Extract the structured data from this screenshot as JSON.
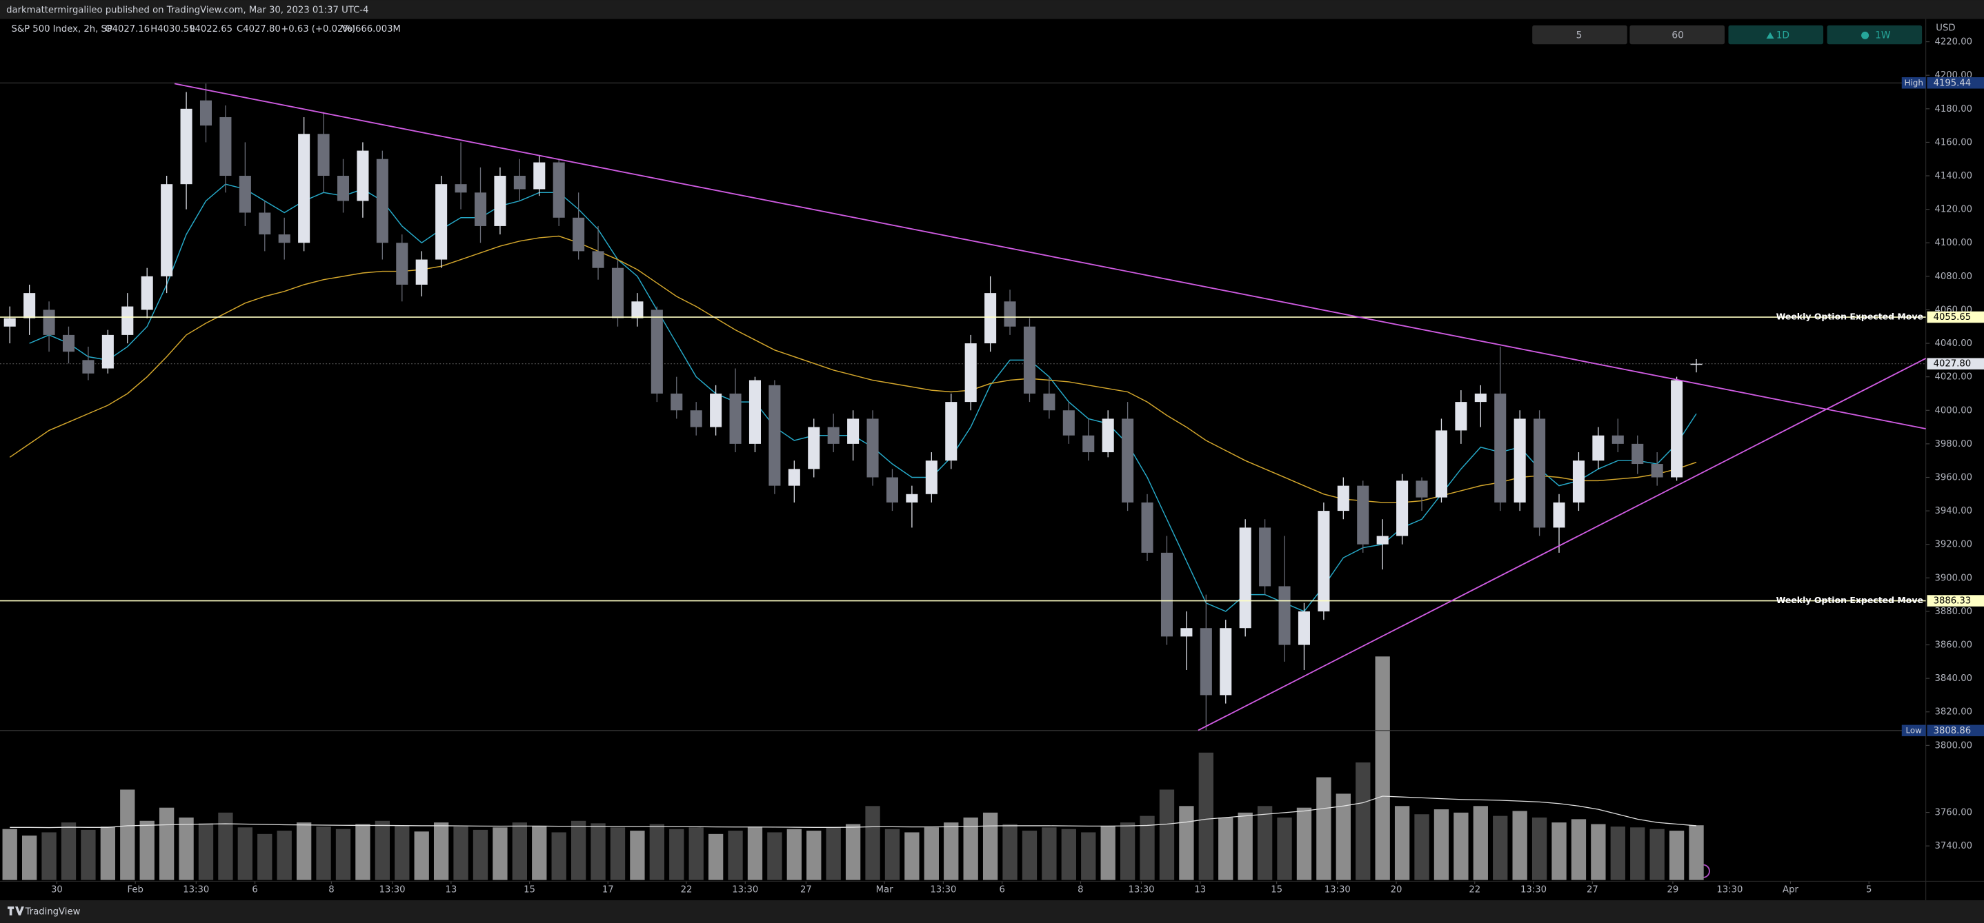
{
  "header": {
    "publisher": "darkmattermirgalileo published on TradingView.com, Mar 30, 2023 01:37 UTC-4",
    "symbol": "S&P 500 Index, 2h, SP",
    "open": "O4027.16",
    "high": "H4030.59",
    "low": "L4022.65",
    "close": "C4027.80",
    "change": "+0.63 (+0.02%)",
    "volume": "Vol666.003M",
    "currency": "USD"
  },
  "toolbar": [
    "5",
    "60",
    "1D",
    "1W"
  ],
  "footer": "TradingView",
  "chart_data": {
    "type": "candlestick",
    "xlim": [
      -0.5,
      97.7
    ],
    "ylim": [
      3718.9,
      4233.6
    ],
    "xticks": [
      {
        "value": 2.4,
        "label": "30"
      },
      {
        "value": 6.4,
        "label": "Feb"
      },
      {
        "value": 9.5,
        "label": "13:30"
      },
      {
        "value": 12.5,
        "label": "6"
      },
      {
        "value": 16.4,
        "label": "8"
      },
      {
        "value": 19.5,
        "label": "13:30"
      },
      {
        "value": 22.5,
        "label": "13"
      },
      {
        "value": 26.5,
        "label": "15"
      },
      {
        "value": 30.5,
        "label": "17"
      },
      {
        "value": 34.5,
        "label": "22"
      },
      {
        "value": 37.5,
        "label": "13:30"
      },
      {
        "value": 40.6,
        "label": "27"
      },
      {
        "value": 44.6,
        "label": "Mar"
      },
      {
        "value": 47.6,
        "label": "13:30"
      },
      {
        "value": 50.6,
        "label": "6"
      },
      {
        "value": 54.6,
        "label": "8"
      },
      {
        "value": 57.7,
        "label": "13:30"
      },
      {
        "value": 60.7,
        "label": "13"
      },
      {
        "value": 64.6,
        "label": "15"
      },
      {
        "value": 67.7,
        "label": "13:30"
      },
      {
        "value": 70.7,
        "label": "20"
      },
      {
        "value": 74.7,
        "label": "22"
      },
      {
        "value": 77.7,
        "label": "13:30"
      },
      {
        "value": 80.7,
        "label": "27"
      },
      {
        "value": 84.8,
        "label": "29"
      },
      {
        "value": 87.7,
        "label": "13:30"
      },
      {
        "value": 90.8,
        "label": "Apr"
      },
      {
        "value": 94.8,
        "label": "5"
      }
    ],
    "yticks": [
      {
        "value": 4220,
        "label": "4220.00"
      },
      {
        "value": 4200,
        "label": "4200.00"
      },
      {
        "value": 4180,
        "label": "4180.00"
      },
      {
        "value": 4160,
        "label": "4160.00"
      },
      {
        "value": 4140,
        "label": "4140.00"
      },
      {
        "value": 4120,
        "label": "4120.00"
      },
      {
        "value": 4100,
        "label": "4100.00"
      },
      {
        "value": 4080,
        "label": "4080.00"
      },
      {
        "value": 4060,
        "label": "4060.00"
      },
      {
        "value": 4040,
        "label": "4040.00"
      },
      {
        "value": 4020,
        "label": "4020.00"
      },
      {
        "value": 4000,
        "label": "4000.00"
      },
      {
        "value": 3980,
        "label": "3980.00"
      },
      {
        "value": 3960,
        "label": "3960.00"
      },
      {
        "value": 3940,
        "label": "3940.00"
      },
      {
        "value": 3920,
        "label": "3920.00"
      },
      {
        "value": 3900,
        "label": "3900.00"
      },
      {
        "value": 3880,
        "label": "3880.00"
      },
      {
        "value": 3860,
        "label": "3860.00"
      },
      {
        "value": 3840,
        "label": "3840.00"
      },
      {
        "value": 3820,
        "label": "3820.00"
      },
      {
        "value": 3800,
        "label": "3800.00"
      },
      {
        "value": 3760,
        "label": "3760.00"
      },
      {
        "value": 3740,
        "label": "3740.00"
      }
    ],
    "up_color": "#e0e3eb",
    "down_color": "#6a6d78",
    "candles": [
      [
        4050,
        4062,
        4040,
        4055
      ],
      [
        4055,
        4075,
        4045,
        4070
      ],
      [
        4060,
        4065,
        4035,
        4045
      ],
      [
        4045,
        4050,
        4028,
        4035
      ],
      [
        4030,
        4038,
        4018,
        4022
      ],
      [
        4025,
        4048,
        4022,
        4045
      ],
      [
        4045,
        4070,
        4040,
        4062
      ],
      [
        4060,
        4085,
        4055,
        4080
      ],
      [
        4080,
        4140,
        4070,
        4135
      ],
      [
        4135,
        4190,
        4120,
        4180
      ],
      [
        4185,
        4195,
        4160,
        4170
      ],
      [
        4175,
        4182,
        4130,
        4140
      ],
      [
        4140,
        4160,
        4110,
        4118
      ],
      [
        4118,
        4125,
        4095,
        4105
      ],
      [
        4105,
        4115,
        4090,
        4100
      ],
      [
        4100,
        4175,
        4095,
        4165
      ],
      [
        4165,
        4178,
        4130,
        4140
      ],
      [
        4140,
        4150,
        4118,
        4125
      ],
      [
        4125,
        4160,
        4115,
        4155
      ],
      [
        4150,
        4155,
        4090,
        4100
      ],
      [
        4100,
        4105,
        4065,
        4075
      ],
      [
        4075,
        4095,
        4068,
        4090
      ],
      [
        4090,
        4140,
        4085,
        4135
      ],
      [
        4135,
        4160,
        4120,
        4130
      ],
      [
        4130,
        4145,
        4100,
        4110
      ],
      [
        4110,
        4145,
        4105,
        4140
      ],
      [
        4140,
        4150,
        4125,
        4132
      ],
      [
        4132,
        4152,
        4128,
        4148
      ],
      [
        4148,
        4150,
        4110,
        4115
      ],
      [
        4115,
        4130,
        4090,
        4095
      ],
      [
        4095,
        4110,
        4078,
        4085
      ],
      [
        4085,
        4090,
        4050,
        4055
      ],
      [
        4055,
        4070,
        4050,
        4065
      ],
      [
        4060,
        4062,
        4005,
        4010
      ],
      [
        4010,
        4020,
        3995,
        4000
      ],
      [
        4000,
        4005,
        3985,
        3990
      ],
      [
        3990,
        4015,
        3985,
        4010
      ],
      [
        4010,
        4025,
        3975,
        3980
      ],
      [
        3980,
        4020,
        3975,
        4018
      ],
      [
        4015,
        4018,
        3950,
        3955
      ],
      [
        3955,
        3970,
        3945,
        3965
      ],
      [
        3965,
        3995,
        3960,
        3990
      ],
      [
        3990,
        3998,
        3975,
        3980
      ],
      [
        3980,
        4000,
        3970,
        3995
      ],
      [
        3995,
        4000,
        3955,
        3960
      ],
      [
        3960,
        3965,
        3940,
        3945
      ],
      [
        3945,
        3955,
        3930,
        3950
      ],
      [
        3950,
        3975,
        3945,
        3970
      ],
      [
        3970,
        4010,
        3965,
        4005
      ],
      [
        4005,
        4045,
        4000,
        4040
      ],
      [
        4040,
        4080,
        4035,
        4070
      ],
      [
        4065,
        4072,
        4045,
        4050
      ],
      [
        4050,
        4055,
        4005,
        4010
      ],
      [
        4010,
        4020,
        3995,
        4000
      ],
      [
        4000,
        4005,
        3980,
        3985
      ],
      [
        3985,
        3995,
        3970,
        3975
      ],
      [
        3975,
        4000,
        3972,
        3995
      ],
      [
        3995,
        4005,
        3940,
        3945
      ],
      [
        3945,
        3950,
        3910,
        3915
      ],
      [
        3915,
        3925,
        3860,
        3865
      ],
      [
        3865,
        3880,
        3845,
        3870
      ],
      [
        3870,
        3890,
        3809,
        3830
      ],
      [
        3830,
        3875,
        3825,
        3870
      ],
      [
        3870,
        3935,
        3865,
        3930
      ],
      [
        3930,
        3935,
        3890,
        3895
      ],
      [
        3895,
        3925,
        3850,
        3860
      ],
      [
        3860,
        3885,
        3845,
        3880
      ],
      [
        3880,
        3945,
        3875,
        3940
      ],
      [
        3940,
        3960,
        3935,
        3955
      ],
      [
        3955,
        3958,
        3915,
        3920
      ],
      [
        3920,
        3935,
        3905,
        3925
      ],
      [
        3925,
        3962,
        3920,
        3958
      ],
      [
        3958,
        3960,
        3940,
        3948
      ],
      [
        3948,
        3995,
        3945,
        3988
      ],
      [
        3988,
        4012,
        3980,
        4005
      ],
      [
        4005,
        4015,
        3990,
        4010
      ],
      [
        4010,
        4038,
        3940,
        3945
      ],
      [
        3945,
        4000,
        3940,
        3995
      ],
      [
        3995,
        4000,
        3925,
        3930
      ],
      [
        3930,
        3950,
        3915,
        3945
      ],
      [
        3945,
        3975,
        3940,
        3970
      ],
      [
        3970,
        3990,
        3965,
        3985
      ],
      [
        3985,
        3995,
        3975,
        3980
      ],
      [
        3980,
        3985,
        3962,
        3968
      ],
      [
        3968,
        3975,
        3955,
        3960
      ],
      [
        3960,
        4020,
        3958,
        4018
      ],
      [
        4027.16,
        4030.59,
        4022.65,
        4027.8
      ]
    ],
    "moving_averages": [
      {
        "color": "#26a9c8",
        "values": [
          null,
          4040,
          4045,
          4040,
          4032,
          4030,
          4038,
          4050,
          4075,
          4105,
          4125,
          4135,
          4132,
          4125,
          4118,
          4125,
          4130,
          4128,
          4132,
          4125,
          4110,
          4100,
          4108,
          4115,
          4115,
          4122,
          4125,
          4130,
          4130,
          4120,
          4108,
          4090,
          4080,
          4060,
          4040,
          4020,
          4010,
          4005,
          4005,
          3990,
          3982,
          3985,
          3985,
          3985,
          3978,
          3968,
          3960,
          3960,
          3972,
          3990,
          4015,
          4030,
          4030,
          4020,
          4005,
          3995,
          3992,
          3980,
          3960,
          3935,
          3910,
          3885,
          3880,
          3890,
          3890,
          3885,
          3880,
          3895,
          3912,
          3918,
          3920,
          3930,
          3935,
          3950,
          3965,
          3978,
          3975,
          3978,
          3965,
          3955,
          3958,
          3965,
          3970,
          3970,
          3968,
          3980,
          3998
        ]
      },
      {
        "color": "#d4a72c",
        "values": [
          3972,
          3980,
          3988,
          3993,
          3998,
          4003,
          4010,
          4020,
          4032,
          4045,
          4052,
          4058,
          4064,
          4068,
          4071,
          4075,
          4078,
          4080,
          4082,
          4083,
          4083,
          4084,
          4086,
          4090,
          4094,
          4098,
          4101,
          4103,
          4104,
          4100,
          4095,
          4090,
          4084,
          4076,
          4068,
          4062,
          4055,
          4048,
          4042,
          4036,
          4032,
          4028,
          4024,
          4021,
          4018,
          4016,
          4014,
          4012,
          4011,
          4012,
          4016,
          4018,
          4019,
          4018,
          4017,
          4015,
          4013,
          4011,
          4005,
          3997,
          3990,
          3982,
          3976,
          3970,
          3965,
          3960,
          3955,
          3950,
          3947,
          3946,
          3945,
          3945,
          3946,
          3949,
          3952,
          3955,
          3957,
          3960,
          3961,
          3960,
          3958,
          3958,
          3959,
          3960,
          3962,
          3965,
          3969
        ]
      }
    ],
    "volume": [
      620,
      540,
      580,
      700,
      610,
      650,
      1100,
      720,
      880,
      760,
      690,
      820,
      640,
      560,
      600,
      700,
      650,
      620,
      680,
      720,
      660,
      590,
      700,
      650,
      610,
      640,
      700,
      660,
      580,
      720,
      690,
      640,
      600,
      680,
      620,
      640,
      560,
      600,
      650,
      580,
      620,
      600,
      640,
      680,
      900,
      620,
      580,
      640,
      700,
      760,
      820,
      680,
      600,
      640,
      620,
      580,
      660,
      700,
      780,
      1100,
      900,
      1550,
      760,
      820,
      900,
      760,
      880,
      1250,
      1050,
      1430,
      2720,
      900,
      800,
      860,
      820,
      900,
      780,
      840,
      760,
      700,
      740,
      680,
      650,
      640,
      620,
      600,
      666
    ],
    "volume_ma": [
      640,
      640,
      638,
      642,
      640,
      640,
      660,
      665,
      672,
      676,
      680,
      684,
      680,
      676,
      672,
      670,
      668,
      666,
      664,
      664,
      662,
      660,
      660,
      658,
      656,
      655,
      656,
      656,
      654,
      654,
      652,
      652,
      650,
      650,
      648,
      648,
      646,
      645,
      645,
      644,
      642,
      640,
      640,
      642,
      648,
      648,
      646,
      646,
      648,
      652,
      658,
      660,
      660,
      660,
      658,
      656,
      656,
      658,
      664,
      680,
      705,
      740,
      760,
      780,
      800,
      820,
      840,
      870,
      900,
      940,
      1020,
      1010,
      1000,
      990,
      980,
      975,
      970,
      960,
      950,
      930,
      900,
      860,
      800,
      740,
      700,
      680,
      660
    ],
    "volume_lim": [
      0,
      4000
    ],
    "volume_up_color": "#8c8c8c",
    "volume_down_color": "#424242",
    "volume_ma_color": "#e0e0e0",
    "hlines": [
      {
        "value": 4055.65,
        "label": "Weekly Option Expected Move",
        "color": "#ffffc4"
      },
      {
        "value": 3886.33,
        "label": "Weekly Option Expected Move",
        "color": "#ffffc4"
      }
    ],
    "trendlines": [
      {
        "x": [
          8.4,
          97.7
        ],
        "y": [
          4195,
          3989
        ],
        "color": "#d05ce3"
      },
      {
        "x": [
          60.6,
          97.7
        ],
        "y": [
          3809,
          4031
        ],
        "color": "#d05ce3"
      }
    ],
    "high": {
      "name": "High",
      "value": 4195.44
    },
    "low": {
      "name": "Low",
      "value": 3808.86
    },
    "last_price": {
      "value": 4027.8,
      "label": "4027.80"
    }
  }
}
